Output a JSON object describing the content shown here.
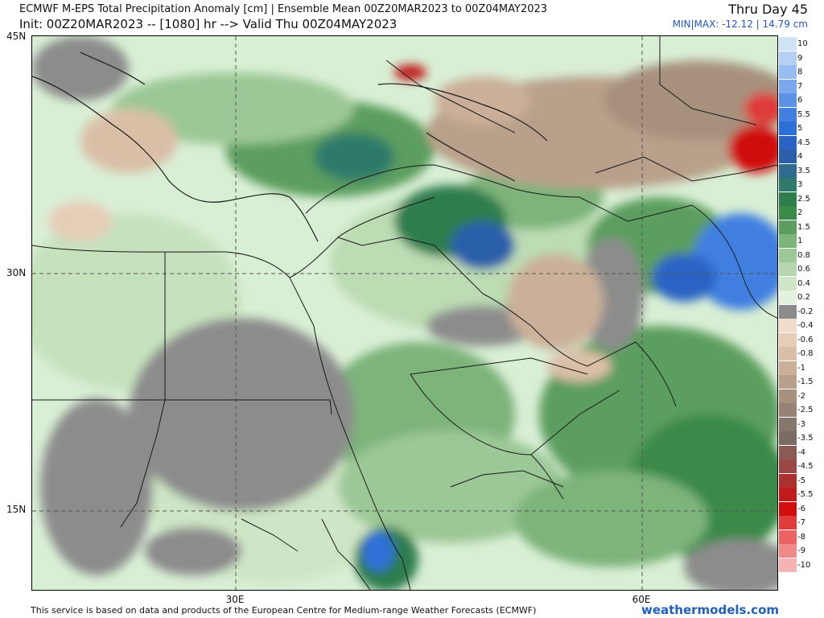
{
  "header": {
    "title": "ECMWF M-EPS Total Precipitation Anomaly [cm] | Ensemble Mean 00Z20MAR2023 to 00Z04MAY2023",
    "init": "Init: 00Z20MAR2023 -- [1080] hr --> Valid Thu 00Z04MAY2023",
    "day_label": "Thru Day 45",
    "minmax": "MIN|MAX: -12.12 | 14.79 cm"
  },
  "axes": {
    "lat_labels": [
      "45N",
      "30N",
      "15N"
    ],
    "lon_labels": [
      "30E",
      "60E"
    ]
  },
  "legend": {
    "entries": [
      {
        "label": "10",
        "color": "#cfe3f7"
      },
      {
        "label": "9",
        "color": "#b4d1f3"
      },
      {
        "label": "8",
        "color": "#98bdf0"
      },
      {
        "label": "7",
        "color": "#7aa8ec"
      },
      {
        "label": "6",
        "color": "#5b92e6"
      },
      {
        "label": "5.5",
        "color": "#417fe0"
      },
      {
        "label": "5",
        "color": "#2d6fd8"
      },
      {
        "label": "4.5",
        "color": "#2a63c4"
      },
      {
        "label": "4",
        "color": "#2c5faa"
      },
      {
        "label": "3.5",
        "color": "#2e6b8e"
      },
      {
        "label": "3",
        "color": "#2f7a6a"
      },
      {
        "label": "2.5",
        "color": "#2f7d4d"
      },
      {
        "label": "2",
        "color": "#3a8a4a"
      },
      {
        "label": "1.5",
        "color": "#5b9e5f"
      },
      {
        "label": "1",
        "color": "#7db47a"
      },
      {
        "label": "0.8",
        "color": "#9cc796"
      },
      {
        "label": "0.6",
        "color": "#b6d6ad"
      },
      {
        "label": "0.4",
        "color": "#cfe6c6"
      },
      {
        "label": "0.2",
        "color": "#e3f2dc"
      },
      {
        "label": "-0.2",
        "color": "#8c8c8c"
      },
      {
        "label": "-0.4",
        "color": "#efdccb"
      },
      {
        "label": "-0.6",
        "color": "#e6cdb8"
      },
      {
        "label": "-0.8",
        "color": "#dabfa7"
      },
      {
        "label": "-1",
        "color": "#cbb099"
      },
      {
        "label": "-1.5",
        "color": "#b9a08a"
      },
      {
        "label": "-2",
        "color": "#a7917d"
      },
      {
        "label": "-2.5",
        "color": "#968375"
      },
      {
        "label": "-3",
        "color": "#86776d"
      },
      {
        "label": "-3.5",
        "color": "#7a6b63"
      },
      {
        "label": "-4",
        "color": "#8a5a55"
      },
      {
        "label": "-4.5",
        "color": "#9a4845"
      },
      {
        "label": "-5",
        "color": "#ad3030"
      },
      {
        "label": "-5.5",
        "color": "#c01a1a"
      },
      {
        "label": "-6",
        "color": "#d00e0e"
      },
      {
        "label": "-7",
        "color": "#e03a3a"
      },
      {
        "label": "-8",
        "color": "#ea6262"
      },
      {
        "label": "-9",
        "color": "#f08a8a"
      },
      {
        "label": "-10",
        "color": "#f6b3b3"
      }
    ]
  },
  "footer": {
    "disclaimer": "This service is based on data and products of the European Centre for Medium-range Weather Forecasts (ECMWF)",
    "brand": "weathermodels.com"
  }
}
